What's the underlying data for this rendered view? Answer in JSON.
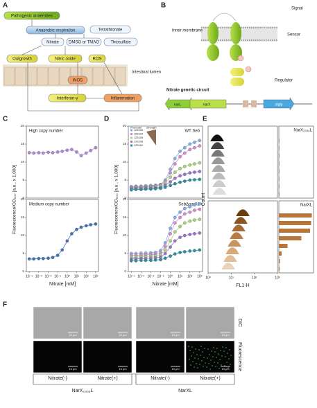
{
  "panel_letters": [
    "A",
    "B",
    "C",
    "D",
    "E",
    "F"
  ],
  "panel_a": {
    "pathogenic": "Pathogenic anaerobes",
    "respiration": "Anaerobic respiration",
    "tetrathionate": "Tetrathionate",
    "nitrate": "Nitrate",
    "dmso": "DMSO or TMAO",
    "thiosulfate": "Thiosulfate",
    "outgrowth": "Outgrowth",
    "nitric_oxide": "Nitric oxide",
    "ros": "ROS",
    "inos": "iNOS",
    "lumen": "Intestinal lumen",
    "interferon": "Interferon-γ",
    "inflammation": "Inflammation"
  },
  "panel_b": {
    "signal": "Signal",
    "membrane": "Inner membrane",
    "sensor": "Sensor",
    "regulator": "Regulator",
    "circuit": "Nitrate genetic circuit",
    "genes": [
      "narL",
      "narX",
      "sfgfp"
    ]
  },
  "chart_data": [
    {
      "type": "line",
      "title": "High copy number",
      "ylabel": "Fluorescence/OD₆₀₀ [a.u., x 1,000]",
      "log_x": true,
      "x": [
        0.0001,
        0.0003,
        0.001,
        0.003,
        0.01,
        0.03,
        0.1,
        0.3,
        1,
        3,
        10,
        30,
        100,
        300,
        1000
      ],
      "xlim": [
        5e-05,
        2000
      ],
      "ylim": [
        0,
        20
      ],
      "yticks": [
        0,
        5,
        10,
        15,
        20
      ],
      "series": [
        {
          "color": "#b08ad8",
          "values": [
            12.6,
            12.5,
            12.6,
            12.5,
            12.7,
            12.6,
            12.8,
            13.0,
            13.3,
            13.5,
            12.8,
            11.8,
            12.5,
            13.2,
            14.0
          ]
        }
      ]
    },
    {
      "type": "line",
      "title": "Medium copy number",
      "xlabel": "Nitrate [mM]",
      "log_x": true,
      "x": [
        0.0001,
        0.0003,
        0.001,
        0.003,
        0.01,
        0.03,
        0.1,
        0.3,
        1,
        3,
        10,
        30,
        100,
        300,
        1000
      ],
      "xlim": [
        5e-05,
        2000
      ],
      "ylim": [
        0,
        20
      ],
      "yticks": [
        0,
        5,
        10,
        15,
        20
      ],
      "xticks": [
        {
          "value": 0.0001,
          "label": "10⁻⁴"
        },
        {
          "value": 0.001,
          "label": "10⁻³"
        },
        {
          "value": 0.01,
          "label": "10⁻²"
        },
        {
          "value": 0.1,
          "label": "10⁻¹"
        },
        {
          "value": 1,
          "label": "10⁰"
        },
        {
          "value": 10,
          "label": "10¹"
        },
        {
          "value": 100,
          "label": "10²"
        },
        {
          "value": 1000,
          "label": "10³"
        }
      ],
      "series": [
        {
          "color": "#3f74b5",
          "values": [
            3.5,
            3.5,
            3.6,
            3.6,
            3.7,
            3.9,
            4.5,
            6.0,
            8.5,
            10.5,
            11.7,
            12.3,
            12.7,
            13.0,
            13.2
          ]
        }
      ]
    },
    {
      "type": "line",
      "title": "WT Seb",
      "ylabel": "Fluorescence/OD₆₀₀ [a.u., x 1,000]",
      "log_x": true,
      "legend_title": [
        "Promoter",
        "strength"
      ],
      "x": [
        0.0001,
        0.0003,
        0.001,
        0.003,
        0.01,
        0.03,
        0.1,
        0.3,
        1,
        3,
        10,
        30,
        100,
        300,
        1000
      ],
      "xlim": [
        5e-05,
        2000
      ],
      "ylim": [
        0,
        20
      ],
      "yticks": [
        0,
        5,
        10,
        15,
        20
      ],
      "series": [
        {
          "name": "J23100",
          "color": "#86aee6",
          "values": [
            3.2,
            3.3,
            3.3,
            3.4,
            3.5,
            3.6,
            3.8,
            5,
            8,
            11,
            13,
            14,
            15,
            15.5,
            16
          ]
        },
        {
          "name": "J23104",
          "color": "#d78bcb",
          "values": [
            3,
            3.1,
            3.1,
            3.2,
            3.3,
            3.4,
            3.6,
            4.6,
            7,
            9.5,
            11.5,
            12.5,
            13.5,
            14,
            14.5
          ]
        },
        {
          "name": "J23105",
          "color": "#a3d47e",
          "values": [
            2.8,
            2.9,
            2.9,
            3,
            3.1,
            3.2,
            3.4,
            4.2,
            5.8,
            7.2,
            8.2,
            8.8,
            9.2,
            9.5,
            9.8
          ]
        },
        {
          "name": "J23106",
          "color": "#9b72c9",
          "values": [
            2.6,
            2.7,
            2.7,
            2.8,
            2.8,
            2.9,
            3,
            3.6,
            4.5,
            5.5,
            6.2,
            6.6,
            7,
            7.2,
            7.4
          ]
        },
        {
          "name": "J23116",
          "color": "#2f8f9f",
          "values": [
            2.3,
            2.4,
            2.4,
            2.5,
            2.5,
            2.6,
            2.7,
            3,
            3.5,
            4,
            4.4,
            4.7,
            5,
            5.1,
            5.2
          ]
        }
      ]
    },
    {
      "type": "line",
      "title": "SebΔnarXL",
      "xlabel": "Nitrate [mM]",
      "log_x": true,
      "x": [
        0.0001,
        0.0003,
        0.001,
        0.003,
        0.01,
        0.03,
        0.1,
        0.3,
        1,
        3,
        10,
        30,
        100,
        300,
        1000
      ],
      "xlim": [
        5e-05,
        2000
      ],
      "ylim": [
        0,
        20
      ],
      "yticks": [
        0,
        5,
        10,
        15,
        20
      ],
      "xticks": [
        {
          "value": 0.0001,
          "label": "10⁻⁴"
        },
        {
          "value": 0.001,
          "label": "10⁻³"
        },
        {
          "value": 0.01,
          "label": "10⁻²"
        },
        {
          "value": 0.1,
          "label": "10⁻¹"
        },
        {
          "value": 1,
          "label": "10⁰"
        },
        {
          "value": 10,
          "label": "10¹"
        },
        {
          "value": 100,
          "label": "10²"
        },
        {
          "value": 1000,
          "label": "10³"
        }
      ],
      "series": [
        {
          "color": "#86aee6",
          "values": [
            5,
            5,
            5.1,
            5.1,
            5.2,
            5.3,
            5.8,
            8,
            12,
            15,
            16.5,
            17.5,
            18,
            18.5,
            18.8
          ]
        },
        {
          "color": "#d78bcb",
          "values": [
            4.5,
            4.5,
            4.6,
            4.6,
            4.7,
            4.8,
            5.2,
            7,
            10.5,
            13.5,
            15,
            16,
            16.5,
            17,
            17.3
          ]
        },
        {
          "color": "#a3d47e",
          "values": [
            4,
            4,
            4.1,
            4.1,
            4.2,
            4.3,
            4.6,
            6,
            8.5,
            11,
            12.5,
            13.5,
            14,
            14.3,
            14.5
          ]
        },
        {
          "color": "#9b72c9",
          "values": [
            3.5,
            3.5,
            3.6,
            3.6,
            3.7,
            3.8,
            4,
            5,
            6.8,
            8.5,
            9.5,
            10,
            10.3,
            10.5,
            10.7
          ]
        },
        {
          "color": "#2f8f9f",
          "values": [
            3,
            3,
            3.1,
            3.1,
            3.1,
            3.2,
            3.3,
            3.7,
            4.3,
            4.9,
            5.3,
            5.5,
            5.7,
            5.8,
            6
          ]
        }
      ]
    },
    {
      "type": "hbar",
      "title": "NarX₂₃₅₆L",
      "color": "#9a9a9a",
      "xlim": [
        0,
        10
      ],
      "values": [
        0.2,
        0.2,
        0.2,
        0.2,
        0.2,
        0.2,
        0.2,
        0.2
      ]
    },
    {
      "type": "hbar",
      "title": "NarXL",
      "color": "#b5773a",
      "xlim": [
        0,
        10
      ],
      "values": [
        9.5,
        9.3,
        9,
        6.5,
        2.5,
        0.8,
        0.3,
        0.2
      ]
    }
  ],
  "panel_e": {
    "ylabel": "Count",
    "xlabel": "FL1-H",
    "xlim": [
      1,
      1000
    ],
    "xticks": [
      {
        "value": 1,
        "label": "10⁰"
      },
      {
        "value": 10,
        "label": "10¹"
      },
      {
        "value": 100,
        "label": "10²"
      },
      {
        "value": 1000,
        "label": "10³"
      }
    ]
  },
  "panel_f": {
    "scale_bar": "10 μm",
    "rows": [
      "DIC",
      "Fluorescence"
    ],
    "columns": [
      "Nitrate(-)",
      "Nitrate(+)",
      "Nitrate(-)",
      "Nitrate(+)"
    ],
    "groups": [
      "NarX₂₃₅₆L",
      "NarXL"
    ]
  }
}
